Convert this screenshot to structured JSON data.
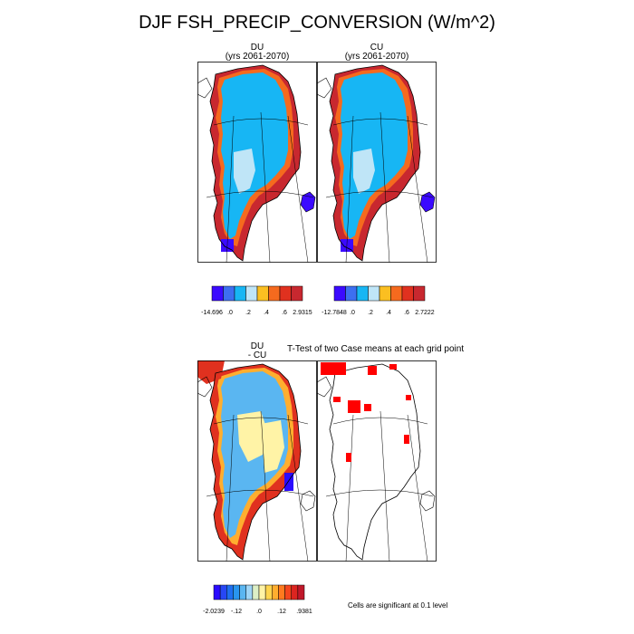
{
  "title": "DJF FSH_PRECIP_CONVERSION (W/m^2)",
  "panels": [
    {
      "id": "du",
      "label": "DU",
      "sublabel": "(yrs 2061-2070)"
    },
    {
      "id": "cu",
      "label": "CU",
      "sublabel": "(yrs 2061-2070)"
    },
    {
      "id": "diff",
      "label": "DU",
      "sublabel": "- CU"
    },
    {
      "id": "ttest",
      "label": "T-Test of two Case means at each grid point",
      "sublabel": ""
    }
  ],
  "colorbars": [
    {
      "id": "du",
      "colors": [
        "#3b0aff",
        "#3d6ff0",
        "#17b6f4",
        "#bfe5f7",
        "#fbbf21",
        "#f56a1e",
        "#e0311f",
        "#c8282f"
      ],
      "labels": [
        "-14.696",
        ".0",
        ".2",
        ".4",
        ".6",
        "2.9315"
      ]
    },
    {
      "id": "cu",
      "colors": [
        "#3b0aff",
        "#3d6ff0",
        "#17b6f4",
        "#bfe5f7",
        "#fbbf21",
        "#f56a1e",
        "#e0311f",
        "#c8282f"
      ],
      "labels": [
        "-12.7848",
        ".0",
        ".2",
        ".4",
        ".6",
        "2.7222"
      ]
    },
    {
      "id": "diff",
      "colors": [
        "#2a0bff",
        "#2747f5",
        "#1f6ff0",
        "#2995ee",
        "#5ab6f1",
        "#9fd5f6",
        "#dcefc6",
        "#fff3a6",
        "#ffd54f",
        "#ffae2f",
        "#ff7a1f",
        "#f4461d",
        "#dc2520",
        "#c0182a"
      ],
      "labels": [
        "-2.0239",
        "-.12",
        ".0",
        ".12",
        ".9381"
      ]
    }
  ],
  "significance_note": "Cells are significant at 0.1 level",
  "colors": {
    "significant": "#ff0000",
    "ocean_bg": "#ffffff",
    "outline": "#000000"
  }
}
